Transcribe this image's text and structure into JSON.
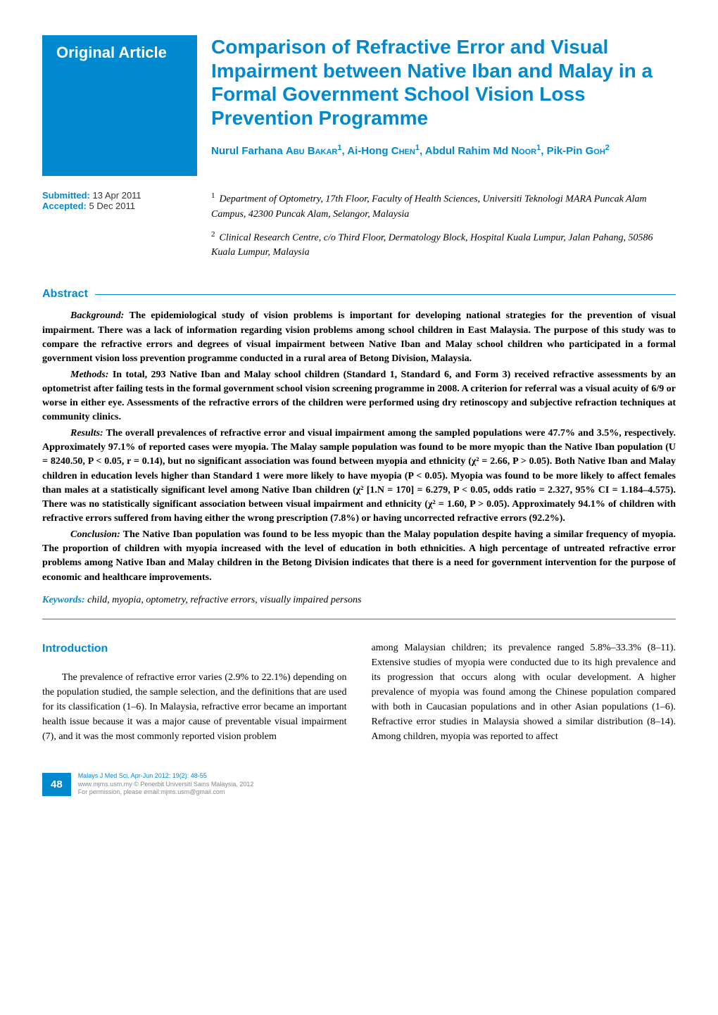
{
  "badge": "Original Article",
  "title": "Comparison of Refractive Error and Visual Impairment between Native Iban and Malay in a Formal Government School Vision Loss Prevention Programme",
  "authors_html": "Nurul Farhana <span class='small-caps'>Abu Bakar</span><sup>1</sup>, Ai-Hong <span class='small-caps'>Chen</span><sup>1</sup>, Abdul Rahim Md <span class='small-caps'>Noor</span><sup>1</sup>, Pik-Pin <span class='small-caps'>Goh</span><sup>2</sup>",
  "submitted_label": "Submitted:",
  "submitted_date": "13 Apr 2011",
  "accepted_label": "Accepted:",
  "accepted_date": "5 Dec 2011",
  "affiliations": [
    {
      "num": "1",
      "text": "Department of Optometry, 17th Floor, Faculty of Health Sciences, Universiti Teknologi MARA Puncak Alam Campus, 42300 Puncak Alam, Selangor, Malaysia"
    },
    {
      "num": "2",
      "text": "Clinical Research Centre, c/o Third Floor, Dermatology Block, Hospital Kuala Lumpur, Jalan Pahang, 50586 Kuala Lumpur, Malaysia"
    }
  ],
  "abstract_heading": "Abstract",
  "abstract": {
    "background_label": "Background:",
    "background": "The epidemiological study of vision problems is important for developing national strategies for the prevention of visual impairment. There was a lack of information regarding vision problems among school children in East Malaysia. The purpose of this study was to compare the refractive errors and degrees of visual impairment between Native Iban and Malay school children who participated in a formal government vision loss prevention programme conducted in a rural area of Betong Division, Malaysia.",
    "methods_label": "Methods:",
    "methods": "In total, 293 Native Iban and Malay school children (Standard 1, Standard 6, and Form 3) received refractive assessments by an optometrist after failing tests in the formal government school vision screening programme in 2008. A criterion for referral was a visual acuity of 6/9 or worse in either eye. Assessments of the refractive errors of the children were performed using dry retinoscopy and subjective refraction techniques at community clinics.",
    "results_label": "Results:",
    "results": "The overall prevalences of refractive error and visual impairment among the sampled populations were 47.7% and 3.5%, respectively. Approximately 97.1% of reported cases were myopia. The Malay sample population was found to be more myopic than the Native Iban population (U = 8240.50, P < 0.05, r = 0.14), but no significant association was found between myopia and ethnicity (χ² = 2.66, P > 0.05). Both Native Iban and Malay children in education levels higher than Standard 1 were more likely to have myopia (P < 0.05). Myopia was found to be more likely to affect females than males at a statistically significant level among Native Iban children (χ² [1.N = 170] = 6.279, P < 0.05, odds ratio = 2.327, 95% CI = 1.184–4.575). There was no statistically significant association between visual impairment and ethnicity (χ² = 1.60, P > 0.05). Approximately 94.1% of children with refractive errors suffered from having either the wrong prescription (7.8%) or having uncorrected refractive errors (92.2%).",
    "conclusion_label": "Conclusion:",
    "conclusion": "The Native Iban population was found to be less myopic than the Malay population despite having a similar frequency of myopia. The proportion of children with myopia increased with the level of education in both ethnicities. A high percentage of untreated refractive error problems among Native Iban and Malay children in the Betong Division indicates that there is a need for government intervention for the purpose of economic and healthcare improvements."
  },
  "keywords_label": "Keywords:",
  "keywords": "child, myopia, optometry, refractive errors, visually impaired persons",
  "intro_heading": "Introduction",
  "intro_col1": "The prevalence of refractive error varies (2.9% to 22.1%) depending on the population studied, the sample selection, and the definitions that are used for its classification (1–6). In Malaysia, refractive error became an important health issue because it was a major cause of preventable visual impairment (7), and it was the most commonly reported vision problem",
  "intro_col2": "among Malaysian children; its prevalence ranged 5.8%–33.3% (8–11). Extensive studies of myopia were conducted due to its high prevalence and its progression that occurs along with ocular development. A higher prevalence of myopia was found among the Chinese population compared with both in Caucasian populations and in other Asian populations (1–6). Refractive error studies in Malaysia showed a similar distribution (8–14). Among children, myopia was reported to affect",
  "page_number": "48",
  "footer_citation": "Malays J Med Sci. Apr-Jun 2012; 19(2): 48-55",
  "footer_line2": "www.mjms.usm.my © Penerbit Universiti Sains Malaysia, 2012",
  "footer_line3": "For permission, please email:mjms.usm@gmail.com",
  "colors": {
    "brand": "#0089cf",
    "text": "#000000",
    "footer_gray": "#888888",
    "background": "#ffffff"
  }
}
